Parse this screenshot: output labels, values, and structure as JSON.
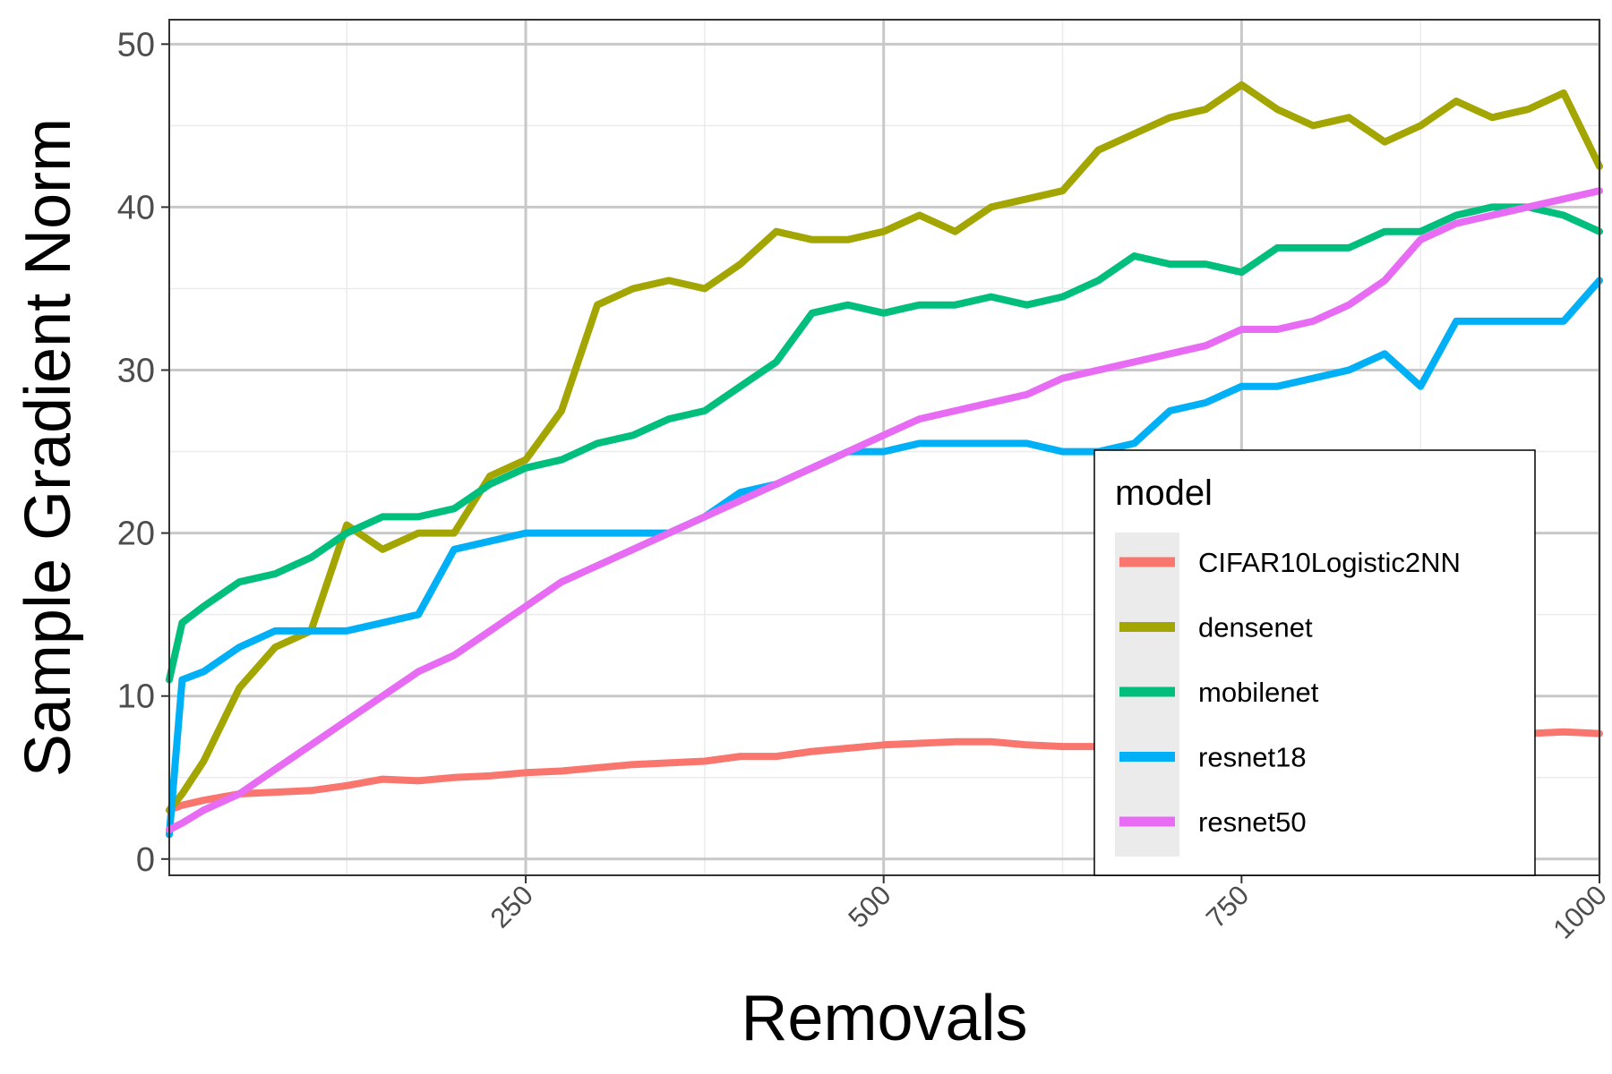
{
  "chart_data": {
    "type": "line",
    "xlabel": "Removals",
    "ylabel": "Sample Gradient Norm",
    "xlim": [
      1,
      1000
    ],
    "ylim": [
      -1,
      51.5
    ],
    "x_ticks": [
      250,
      500,
      750,
      1000
    ],
    "x_tick_labels": [
      "250",
      "500",
      "750",
      "1000"
    ],
    "y_ticks": [
      0,
      10,
      20,
      30,
      40,
      50
    ],
    "y_tick_labels": [
      "0",
      "10",
      "20",
      "30",
      "40",
      "50"
    ],
    "grid": true,
    "legend": {
      "title": "model",
      "placement": "lower-right inside"
    },
    "x": [
      1,
      10,
      25,
      50,
      75,
      100,
      125,
      150,
      175,
      200,
      225,
      250,
      275,
      300,
      325,
      350,
      375,
      400,
      425,
      450,
      475,
      500,
      525,
      550,
      575,
      600,
      625,
      650,
      675,
      700,
      725,
      750,
      775,
      800,
      825,
      850,
      875,
      900,
      925,
      950,
      975,
      1000
    ],
    "series": [
      {
        "name": "CIFAR10Logistic2NN",
        "color": "#F8766D",
        "values": [
          3.0,
          3.3,
          3.6,
          4.0,
          4.1,
          4.2,
          4.5,
          4.9,
          4.8,
          5.0,
          5.1,
          5.3,
          5.4,
          5.6,
          5.8,
          5.9,
          6.0,
          6.3,
          6.3,
          6.6,
          6.8,
          7.0,
          7.1,
          7.2,
          7.2,
          7.0,
          6.9,
          6.9,
          6.9,
          6.8,
          6.8,
          6.8,
          6.9,
          7.0,
          7.1,
          7.2,
          7.3,
          7.5,
          7.6,
          7.7,
          7.8,
          7.7
        ]
      },
      {
        "name": "densenet",
        "color": "#A3A500",
        "values": [
          3.0,
          4.0,
          6.0,
          10.5,
          13.0,
          14.0,
          20.5,
          19.0,
          20.0,
          20.0,
          23.5,
          24.5,
          27.5,
          34.0,
          35.0,
          35.5,
          35.0,
          36.5,
          38.5,
          38.0,
          38.0,
          38.5,
          39.5,
          38.5,
          40.0,
          40.5,
          41.0,
          43.5,
          44.5,
          45.5,
          46.0,
          47.5,
          46.0,
          45.0,
          45.5,
          44.0,
          45.0,
          46.5,
          45.5,
          46.0,
          47.0,
          42.5
        ]
      },
      {
        "name": "mobilenet",
        "color": "#00BF7D",
        "values": [
          11.0,
          14.5,
          15.5,
          17.0,
          17.5,
          18.5,
          20.0,
          21.0,
          21.0,
          21.5,
          23.0,
          24.0,
          24.5,
          25.5,
          26.0,
          27.0,
          27.5,
          29.0,
          30.5,
          33.5,
          34.0,
          33.5,
          34.0,
          34.0,
          34.5,
          34.0,
          34.5,
          35.5,
          37.0,
          36.5,
          36.5,
          36.0,
          37.5,
          37.5,
          37.5,
          38.5,
          38.5,
          39.5,
          40.0,
          40.0,
          39.5,
          38.5
        ]
      },
      {
        "name": "resnet18",
        "color": "#00B0F6",
        "values": [
          1.5,
          11.0,
          11.5,
          13.0,
          14.0,
          14.0,
          14.0,
          14.5,
          15.0,
          19.0,
          19.5,
          20.0,
          20.0,
          20.0,
          20.0,
          20.0,
          21.0,
          22.5,
          23.0,
          24.0,
          25.0,
          25.0,
          25.5,
          25.5,
          25.5,
          25.5,
          25.0,
          25.0,
          25.5,
          27.5,
          28.0,
          29.0,
          29.0,
          29.5,
          30.0,
          31.0,
          29.0,
          33.0,
          33.0,
          33.0,
          33.0,
          35.5
        ]
      },
      {
        "name": "resnet50",
        "color": "#E76BF3",
        "values": [
          1.8,
          2.2,
          3.0,
          4.0,
          5.5,
          7.0,
          8.5,
          10.0,
          11.5,
          12.5,
          14.0,
          15.5,
          17.0,
          18.0,
          19.0,
          20.0,
          21.0,
          22.0,
          23.0,
          24.0,
          25.0,
          26.0,
          27.0,
          27.5,
          28.0,
          28.5,
          29.5,
          30.0,
          30.5,
          31.0,
          31.5,
          32.5,
          32.5,
          33.0,
          34.0,
          35.5,
          38.0,
          39.0,
          39.5,
          40.0,
          40.5,
          41.0
        ]
      }
    ]
  }
}
